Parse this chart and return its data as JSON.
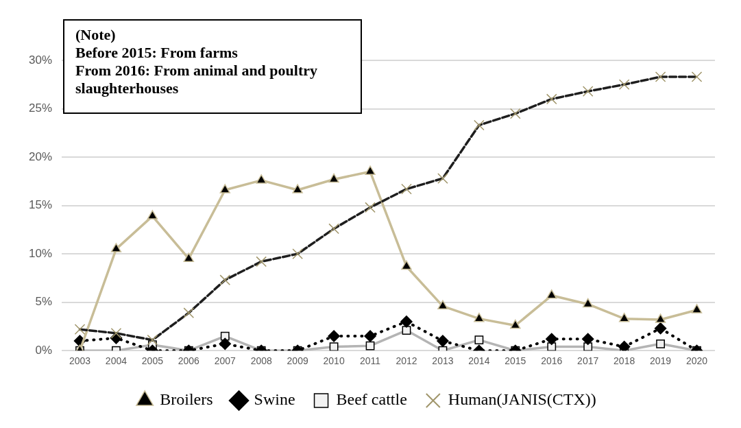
{
  "chart_data": {
    "type": "line",
    "categories": [
      "2003",
      "2004",
      "2005",
      "2006",
      "2007",
      "2008",
      "2009",
      "2010",
      "2011",
      "2012",
      "2013",
      "2014",
      "2015",
      "2016",
      "2017",
      "2018",
      "2019",
      "2020"
    ],
    "series": [
      {
        "name": "Broilers",
        "color": "#c8bd97",
        "marker": "triangle",
        "line_style": "solid",
        "values": [
          0,
          10.5,
          13.9,
          9.5,
          16.6,
          17.6,
          16.6,
          17.7,
          18.5,
          8.7,
          4.6,
          3.3,
          2.6,
          5.7,
          4.8,
          3.3,
          3.2,
          4.2
        ]
      },
      {
        "name": "Swine",
        "color": "#000000",
        "marker": "diamond",
        "line_style": "dotted",
        "values": [
          1.0,
          1.3,
          0,
          0,
          0.7,
          0,
          0,
          1.5,
          1.5,
          3.0,
          1.0,
          0,
          0,
          1.2,
          1.2,
          0.4,
          2.3,
          0
        ]
      },
      {
        "name": "Beef cattle",
        "color": "#b4b4b4",
        "marker": "square",
        "line_style": "solid",
        "values": [
          0,
          0,
          0.6,
          0,
          1.5,
          0,
          0,
          0.4,
          0.5,
          2.1,
          0,
          1.1,
          0,
          0.4,
          0.4,
          0,
          0.7,
          0
        ]
      },
      {
        "name": "Human(JANIS(CTX))",
        "color": "#1e1e1e",
        "marker": "cross",
        "line_style": "dashed",
        "values": [
          2.2,
          1.8,
          1.1,
          3.9,
          7.3,
          9.2,
          10.0,
          12.6,
          14.8,
          16.7,
          17.8,
          23.3,
          24.5,
          26.0,
          26.8,
          27.5,
          28.3,
          28.3
        ]
      }
    ],
    "ylim": [
      0,
      30
    ],
    "yticks": [
      {
        "value": 0,
        "label": "0%"
      },
      {
        "value": 5,
        "label": "5%"
      },
      {
        "value": 10,
        "label": "10%"
      },
      {
        "value": 15,
        "label": "15%"
      },
      {
        "value": 20,
        "label": "20%"
      },
      {
        "value": 25,
        "label": "25%"
      },
      {
        "value": 30,
        "label": "30%"
      }
    ],
    "grid": "y",
    "legend": "bottom",
    "annotations": [
      "(Note)\nBefore 2015: From farms\nFrom 2016: From animal and poultry slaughterhouses"
    ]
  }
}
